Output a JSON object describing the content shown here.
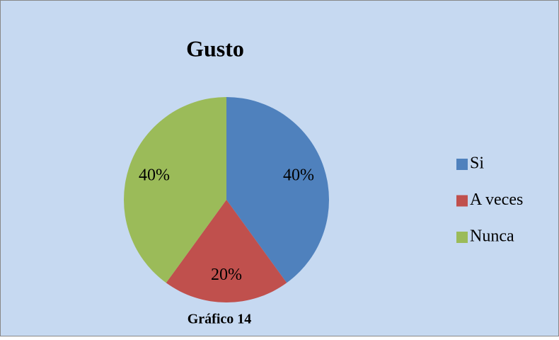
{
  "chart_data": {
    "type": "pie",
    "title": "Gusto",
    "caption": "Gráfico 14",
    "categories": [
      "Si",
      "A veces",
      "Nunca"
    ],
    "values": [
      40,
      20,
      40
    ],
    "value_labels": [
      "40%",
      "20%",
      "40%"
    ],
    "colors": [
      "#4f81bd",
      "#c0504d",
      "#9bbb59"
    ],
    "legend": "right"
  }
}
